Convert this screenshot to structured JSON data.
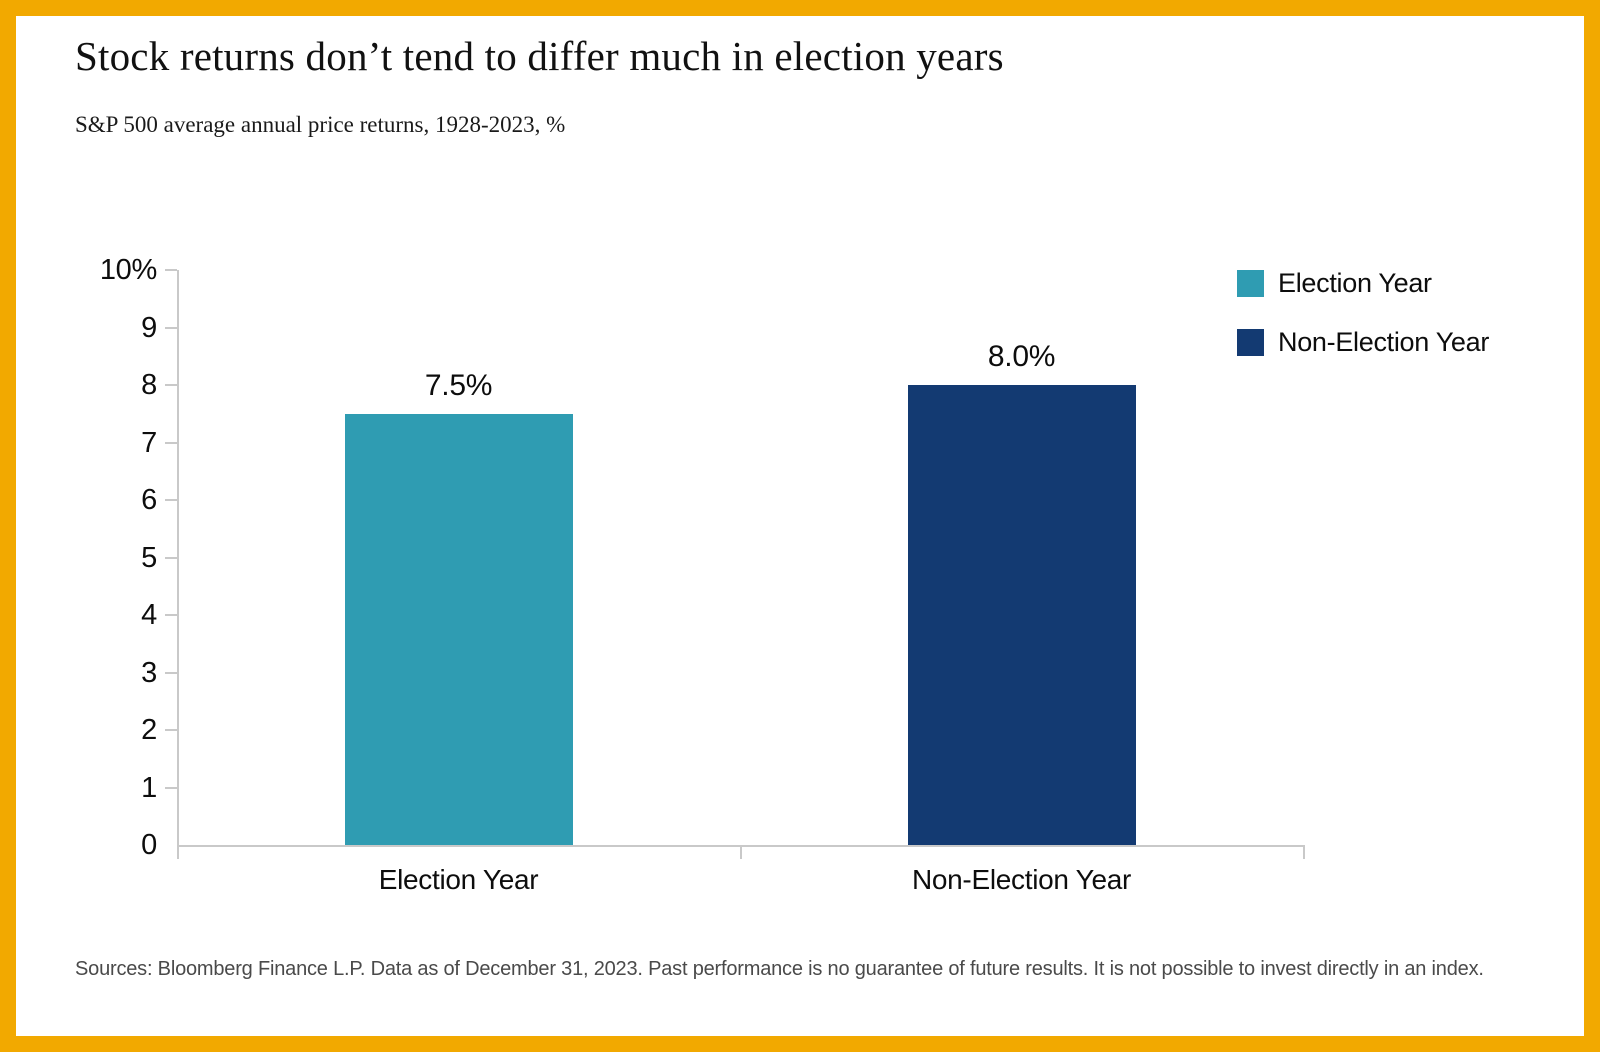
{
  "frame": {
    "border_color": "#F2A900",
    "background": "#FFFFFF"
  },
  "header": {
    "title": "Stock returns don’t tend to differ much in election years",
    "subtitle": "S&P 500 average annual price returns, 1928-2023, %"
  },
  "chart_data": {
    "type": "bar",
    "categories": [
      "Election Year",
      "Non-Election Year"
    ],
    "values": [
      7.5,
      8.0
    ],
    "value_labels": [
      "7.5%",
      "8.0%"
    ],
    "bar_colors": [
      "#2F9CB2",
      "#133A72"
    ],
    "title": "Stock returns don’t tend to differ much in election years",
    "subtitle": "S&P 500 average annual price returns, 1928-2023, %",
    "xlabel": "",
    "ylabel": "",
    "ylim": [
      0,
      10
    ],
    "ytick_step": 1,
    "ytick_labels": [
      "0",
      "1",
      "2",
      "3",
      "4",
      "5",
      "6",
      "7",
      "8",
      "9",
      "10%"
    ],
    "grid": false,
    "legend": {
      "position": "top-right",
      "entries": [
        {
          "label": "Election Year",
          "color": "#2F9CB2"
        },
        {
          "label": "Non-Election Year",
          "color": "#133A72"
        }
      ]
    },
    "axis_color": "#C9C9C9"
  },
  "footer": {
    "source_text": "Sources: Bloomberg Finance L.P. Data as of December 31, 2023. Past performance is no guarantee of future results. It is not possible to invest directly in an index."
  },
  "colors": {
    "accent_border": "#F2A900",
    "election_year": "#2F9CB2",
    "non_election_year": "#133A72",
    "axis": "#C9C9C9",
    "source_text": "#4A4A4A"
  }
}
